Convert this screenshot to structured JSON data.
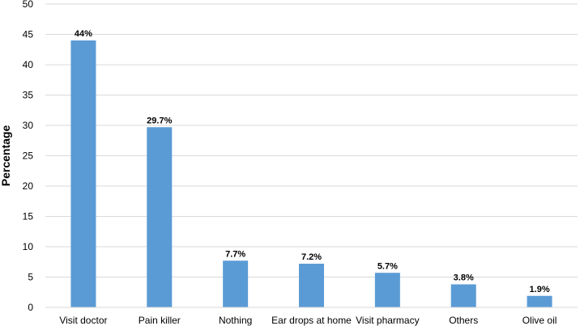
{
  "chart_data": {
    "type": "bar",
    "title": "",
    "xlabel": "",
    "ylabel": "Percentage",
    "ylim": [
      0,
      50
    ],
    "yticks": [
      0,
      5,
      10,
      15,
      20,
      25,
      30,
      35,
      40,
      45,
      50
    ],
    "grid": true,
    "categories": [
      "Visit doctor",
      "Pain killer",
      "Nothing",
      "Ear drops at home",
      "Visit pharmacy",
      "Others",
      "Olive oil"
    ],
    "values": [
      44,
      29.7,
      7.7,
      7.2,
      5.7,
      3.8,
      1.9
    ],
    "data_labels": [
      "44%",
      "29.7%",
      "7.7%",
      "7.2%",
      "5.7%",
      "3.8%",
      "1.9%"
    ],
    "bar_color": "#5B9BD5",
    "grid_color": "#d9d9d9"
  }
}
